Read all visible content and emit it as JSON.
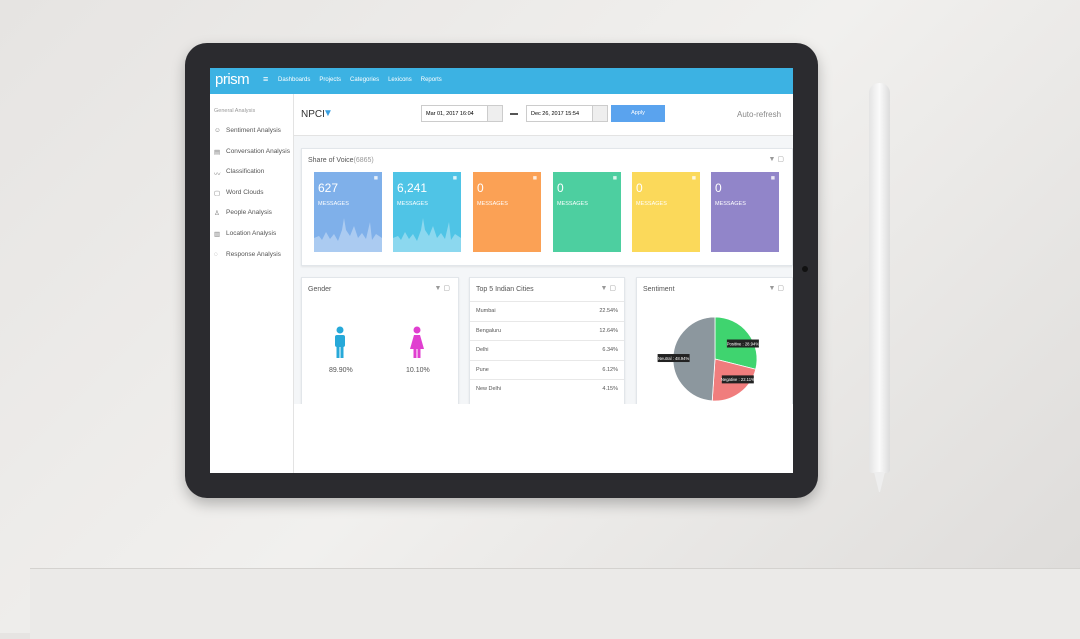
{
  "nav": {
    "logo": "prism",
    "items": [
      "Dashboards",
      "Projects",
      "Categories",
      "Lexicons",
      "Reports"
    ]
  },
  "sidebar": {
    "heading": "General Analysis",
    "items": [
      "Sentiment Analysis",
      "Conversation Analysis",
      "Classification",
      "Word Clouds",
      "People Analysis",
      "Location Analysis",
      "Response Analysis"
    ]
  },
  "toolbar": {
    "title": "NPCI",
    "start_date": "Mar 01, 2017 16:04",
    "end_date": "Dec 26, 2017 15:54",
    "apply": "Apply",
    "auto_refresh": "Auto-refresh"
  },
  "share_of_voice": {
    "title": "Share of Voice",
    "total": "(6865)",
    "cards": [
      {
        "count": "627",
        "label": "MESSAGES",
        "color": "#7fb0ea"
      },
      {
        "count": "6,241",
        "label": "MESSAGES",
        "color": "#4fc4e6"
      },
      {
        "count": "0",
        "label": "MESSAGES",
        "color": "#fba155"
      },
      {
        "count": "0",
        "label": "MESSAGES",
        "color": "#4dcfa0"
      },
      {
        "count": "0",
        "label": "MESSAGES",
        "color": "#fbd95a"
      },
      {
        "count": "0",
        "label": "MESSAGES",
        "color": "#9185c9"
      }
    ]
  },
  "gender": {
    "title": "Gender",
    "male": "89.90%",
    "female": "10.10%"
  },
  "cities": {
    "title": "Top 5 Indian Cities",
    "rows": [
      [
        "Mumbai",
        "22.54%"
      ],
      [
        "Bengaluru",
        "12.64%"
      ],
      [
        "Delhi",
        "6.34%"
      ],
      [
        "Pune",
        "6.12%"
      ],
      [
        "New Delhi",
        "4.15%"
      ]
    ]
  },
  "sentiment": {
    "title": "Sentiment",
    "slices": [
      {
        "value": 28.94,
        "label": "Positive : 28.94%",
        "color": "#3fd46f"
      },
      {
        "value": 22.11,
        "label": "Negative : 22.11%",
        "color": "#f07d7d"
      },
      {
        "value": 48.94,
        "label": "Neutral : 48.94%",
        "color": "#8c979e"
      }
    ]
  }
}
